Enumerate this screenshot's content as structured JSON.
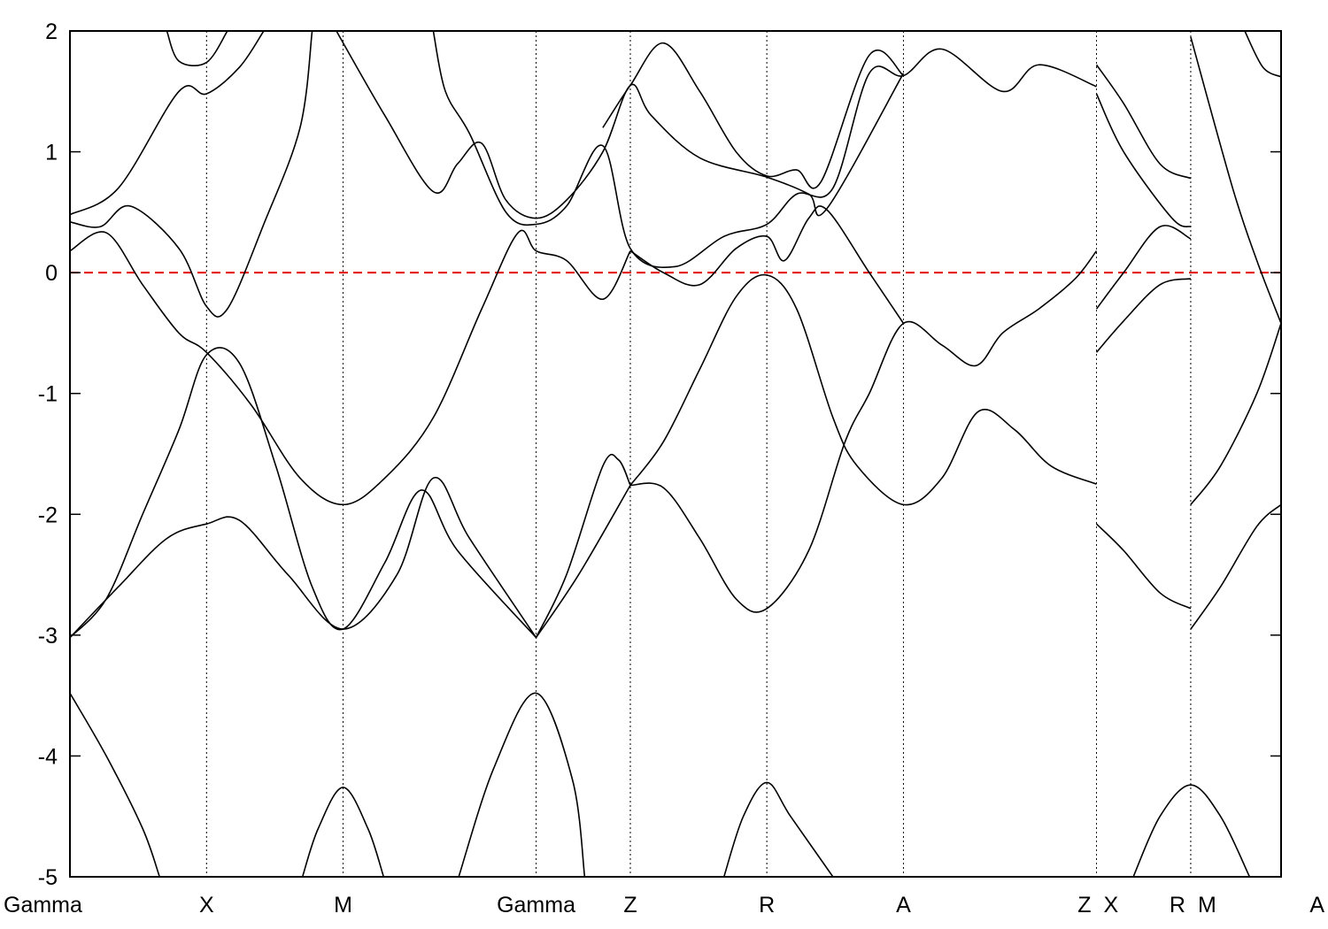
{
  "chart_data": {
    "type": "line",
    "title": "",
    "xlabel": "",
    "ylabel": "",
    "ylim": [
      -5,
      2
    ],
    "yticks": [
      -5,
      -4,
      -3,
      -2,
      -1,
      0,
      1,
      2
    ],
    "ytick_labels": [
      "-5",
      "-4",
      "-3",
      "-2",
      "-1",
      "0",
      "1",
      "2"
    ],
    "xlim": [
      0,
      1
    ],
    "grid": "vertical dotted lines at high-symmetry points",
    "legend": "none",
    "fermi_level": {
      "y": 0,
      "color": "#e00000",
      "style": "dashed"
    },
    "kpoints": [
      {
        "label": "Gamma",
        "x": 0.0
      },
      {
        "label": "X",
        "x": 0.1128
      },
      {
        "label": "M",
        "x": 0.2255
      },
      {
        "label": "Gamma",
        "x": 0.3849
      },
      {
        "label": "Z",
        "x": 0.4627
      },
      {
        "label": "R",
        "x": 0.5754
      },
      {
        "label": "A",
        "x": 0.6882
      },
      {
        "label": "Z",
        "x": 0.8476
      },
      {
        "label": "X",
        "x": 0.8476
      },
      {
        "label": "R",
        "x": 0.9254
      },
      {
        "label": "M",
        "x": 0.9254
      },
      {
        "label": "A",
        "x": 1.0
      }
    ],
    "series": [
      {
        "values": [
          [
            0.0,
            -3.48
          ],
          [
            0.03,
            -4.0
          ],
          [
            0.06,
            -4.6
          ],
          [
            0.074,
            -5.0
          ]
        ]
      },
      {
        "values": [
          [
            0.192,
            -5.0
          ],
          [
            0.205,
            -4.6
          ],
          [
            0.2255,
            -4.26
          ],
          [
            0.246,
            -4.6
          ],
          [
            0.259,
            -5.0
          ]
        ]
      },
      {
        "values": [
          [
            0.321,
            -5.0
          ],
          [
            0.35,
            -4.1
          ],
          [
            0.3849,
            -3.48
          ],
          [
            0.415,
            -4.2
          ],
          [
            0.425,
            -5.0
          ]
        ]
      },
      {
        "values": [
          [
            0.54,
            -5.0
          ],
          [
            0.556,
            -4.5
          ],
          [
            0.5754,
            -4.22
          ],
          [
            0.595,
            -4.5
          ],
          [
            0.63,
            -5.0
          ]
        ]
      },
      {
        "values": [
          [
            0.878,
            -5.0
          ],
          [
            0.9,
            -4.5
          ],
          [
            0.9254,
            -4.24
          ],
          [
            0.95,
            -4.5
          ],
          [
            0.974,
            -5.0
          ]
        ]
      },
      {
        "values": [
          [
            0.0,
            -3.02
          ],
          [
            0.04,
            -2.6
          ],
          [
            0.08,
            -2.2
          ],
          [
            0.1128,
            -2.08
          ],
          [
            0.14,
            -2.05
          ],
          [
            0.18,
            -2.5
          ],
          [
            0.2255,
            -2.95
          ],
          [
            0.27,
            -2.5
          ],
          [
            0.3,
            -1.7
          ],
          [
            0.33,
            -2.2
          ],
          [
            0.3849,
            -3.02
          ]
        ]
      },
      {
        "values": [
          [
            0.0,
            -3.02
          ],
          [
            0.03,
            -2.7
          ],
          [
            0.06,
            -2.0
          ],
          [
            0.09,
            -1.3
          ],
          [
            0.1128,
            -0.68
          ],
          [
            0.14,
            -0.75
          ],
          [
            0.17,
            -1.6
          ],
          [
            0.2,
            -2.6
          ],
          [
            0.2255,
            -2.95
          ],
          [
            0.26,
            -2.4
          ],
          [
            0.29,
            -1.8
          ],
          [
            0.32,
            -2.3
          ],
          [
            0.3849,
            -3.02
          ]
        ]
      },
      {
        "values": [
          [
            0.3849,
            -3.02
          ],
          [
            0.41,
            -2.5
          ],
          [
            0.44,
            -1.6
          ],
          [
            0.453,
            -1.55
          ],
          [
            0.4627,
            -1.76
          ]
        ]
      },
      {
        "values": [
          [
            0.3849,
            -3.02
          ],
          [
            0.42,
            -2.5
          ],
          [
            0.4627,
            -1.76
          ]
        ]
      },
      {
        "values": [
          [
            0.4627,
            -1.76
          ],
          [
            0.49,
            -1.78
          ],
          [
            0.52,
            -2.2
          ],
          [
            0.55,
            -2.7
          ],
          [
            0.5754,
            -2.78
          ],
          [
            0.61,
            -2.3
          ],
          [
            0.64,
            -1.4
          ],
          [
            0.66,
            -1.0
          ],
          [
            0.6882,
            -0.42
          ],
          [
            0.72,
            -0.6
          ],
          [
            0.748,
            -0.77
          ],
          [
            0.77,
            -0.5
          ],
          [
            0.8,
            -0.3
          ],
          [
            0.83,
            -0.05
          ],
          [
            0.8476,
            0.18
          ]
        ]
      },
      {
        "values": [
          [
            0.4627,
            -1.76
          ],
          [
            0.49,
            -1.4
          ],
          [
            0.52,
            -0.8
          ],
          [
            0.55,
            -0.2
          ],
          [
            0.5754,
            -0.02
          ],
          [
            0.6,
            -0.3
          ],
          [
            0.63,
            -1.2
          ],
          [
            0.65,
            -1.6
          ],
          [
            0.6882,
            -1.92
          ],
          [
            0.72,
            -1.7
          ],
          [
            0.75,
            -1.15
          ],
          [
            0.78,
            -1.3
          ],
          [
            0.81,
            -1.6
          ],
          [
            0.8476,
            -1.75
          ]
        ]
      },
      {
        "values": [
          [
            0.0,
            0.18
          ],
          [
            0.03,
            0.33
          ],
          [
            0.06,
            -0.1
          ],
          [
            0.09,
            -0.5
          ],
          [
            0.1128,
            -0.66
          ],
          [
            0.15,
            -1.1
          ],
          [
            0.19,
            -1.7
          ],
          [
            0.2255,
            -1.92
          ],
          [
            0.26,
            -1.7
          ],
          [
            0.3,
            -1.2
          ],
          [
            0.34,
            -0.3
          ],
          [
            0.37,
            0.33
          ],
          [
            0.3849,
            0.18
          ],
          [
            0.41,
            0.1
          ],
          [
            0.44,
            -0.22
          ],
          [
            0.4627,
            0.18
          ]
        ]
      },
      {
        "values": [
          [
            0.0,
            0.42
          ],
          [
            0.025,
            0.38
          ],
          [
            0.05,
            0.55
          ],
          [
            0.09,
            0.2
          ],
          [
            0.1128,
            -0.28
          ],
          [
            0.13,
            -0.3
          ],
          [
            0.16,
            0.4
          ],
          [
            0.19,
            1.2
          ],
          [
            0.2,
            2.0
          ]
        ]
      },
      {
        "values": [
          [
            0.0,
            0.48
          ],
          [
            0.04,
            0.7
          ],
          [
            0.09,
            1.5
          ],
          [
            0.1128,
            1.48
          ],
          [
            0.14,
            1.7
          ],
          [
            0.16,
            2.0
          ]
        ]
      },
      {
        "values": [
          [
            0.08,
            2.0
          ],
          [
            0.09,
            1.75
          ],
          [
            0.1128,
            1.74
          ],
          [
            0.13,
            2.0
          ]
        ]
      },
      {
        "values": [
          [
            0.22,
            2.0
          ],
          [
            0.26,
            1.3
          ],
          [
            0.3,
            0.67
          ],
          [
            0.32,
            0.9
          ],
          [
            0.34,
            1.07
          ],
          [
            0.36,
            0.6
          ],
          [
            0.3849,
            0.45
          ],
          [
            0.41,
            0.6
          ],
          [
            0.44,
            1.0
          ],
          [
            0.4627,
            1.55
          ],
          [
            0.48,
            1.3
          ],
          [
            0.52,
            0.95
          ],
          [
            0.5754,
            0.79
          ],
          [
            0.61,
            0.65
          ],
          [
            0.625,
            0.53
          ],
          [
            0.6882,
            1.65
          ]
        ]
      },
      {
        "values": [
          [
            0.3,
            2.0
          ],
          [
            0.31,
            1.5
          ],
          [
            0.33,
            1.15
          ],
          [
            0.36,
            0.5
          ],
          [
            0.3849,
            0.4
          ],
          [
            0.41,
            0.55
          ],
          [
            0.44,
            1.05
          ],
          [
            0.4627,
            0.2
          ],
          [
            0.5,
            0.05
          ],
          [
            0.54,
            0.3
          ],
          [
            0.5754,
            0.4
          ],
          [
            0.6,
            0.65
          ],
          [
            0.63,
            0.7
          ],
          [
            0.66,
            1.65
          ],
          [
            0.6882,
            1.63
          ],
          [
            0.72,
            1.85
          ],
          [
            0.77,
            1.5
          ],
          [
            0.8,
            1.72
          ],
          [
            0.8476,
            1.54
          ]
        ]
      },
      {
        "values": [
          [
            0.44,
            1.2
          ],
          [
            0.4627,
            1.55
          ],
          [
            0.49,
            1.9
          ],
          [
            0.52,
            1.5
          ],
          [
            0.55,
            1.0
          ],
          [
            0.5754,
            0.8
          ],
          [
            0.6,
            0.85
          ],
          [
            0.62,
            0.75
          ],
          [
            0.66,
            1.8
          ],
          [
            0.6882,
            1.63
          ]
        ]
      },
      {
        "values": [
          [
            0.4627,
            0.18
          ],
          [
            0.49,
            0.0
          ],
          [
            0.52,
            -0.1
          ],
          [
            0.55,
            0.2
          ],
          [
            0.5754,
            0.3
          ],
          [
            0.59,
            0.1
          ],
          [
            0.61,
            0.45
          ],
          [
            0.625,
            0.52
          ],
          [
            0.66,
            0.0
          ],
          [
            0.6882,
            -0.42
          ]
        ]
      },
      {
        "values": [
          [
            0.8476,
            1.72
          ],
          [
            0.87,
            1.4
          ],
          [
            0.9,
            0.9
          ],
          [
            0.9254,
            0.78
          ]
        ]
      },
      {
        "values": [
          [
            0.8476,
            1.48
          ],
          [
            0.87,
            1.0
          ],
          [
            0.91,
            0.45
          ],
          [
            0.9254,
            0.38
          ]
        ]
      },
      {
        "values": [
          [
            0.8476,
            -0.3
          ],
          [
            0.87,
            0.0
          ],
          [
            0.9,
            0.38
          ],
          [
            0.9254,
            0.28
          ]
        ]
      },
      {
        "values": [
          [
            0.8476,
            -0.66
          ],
          [
            0.87,
            -0.4
          ],
          [
            0.9,
            -0.1
          ],
          [
            0.9254,
            -0.05
          ]
        ]
      },
      {
        "values": [
          [
            0.8476,
            -2.08
          ],
          [
            0.87,
            -2.3
          ],
          [
            0.9,
            -2.65
          ],
          [
            0.9254,
            -2.78
          ]
        ]
      },
      {
        "values": [
          [
            0.9254,
            -1.92
          ],
          [
            0.95,
            -1.6
          ],
          [
            0.98,
            -1.0
          ],
          [
            1.0,
            -0.42
          ]
        ]
      },
      {
        "values": [
          [
            0.9254,
            -2.95
          ],
          [
            0.95,
            -2.6
          ],
          [
            0.98,
            -2.1
          ],
          [
            1.0,
            -1.92
          ]
        ]
      },
      {
        "values": [
          [
            0.9254,
            1.95
          ],
          [
            0.96,
            0.7
          ],
          [
            0.98,
            0.1
          ],
          [
            1.0,
            -0.42
          ]
        ]
      },
      {
        "values": [
          [
            0.97,
            2.0
          ],
          [
            0.985,
            1.7
          ],
          [
            1.0,
            1.62
          ]
        ]
      }
    ]
  }
}
